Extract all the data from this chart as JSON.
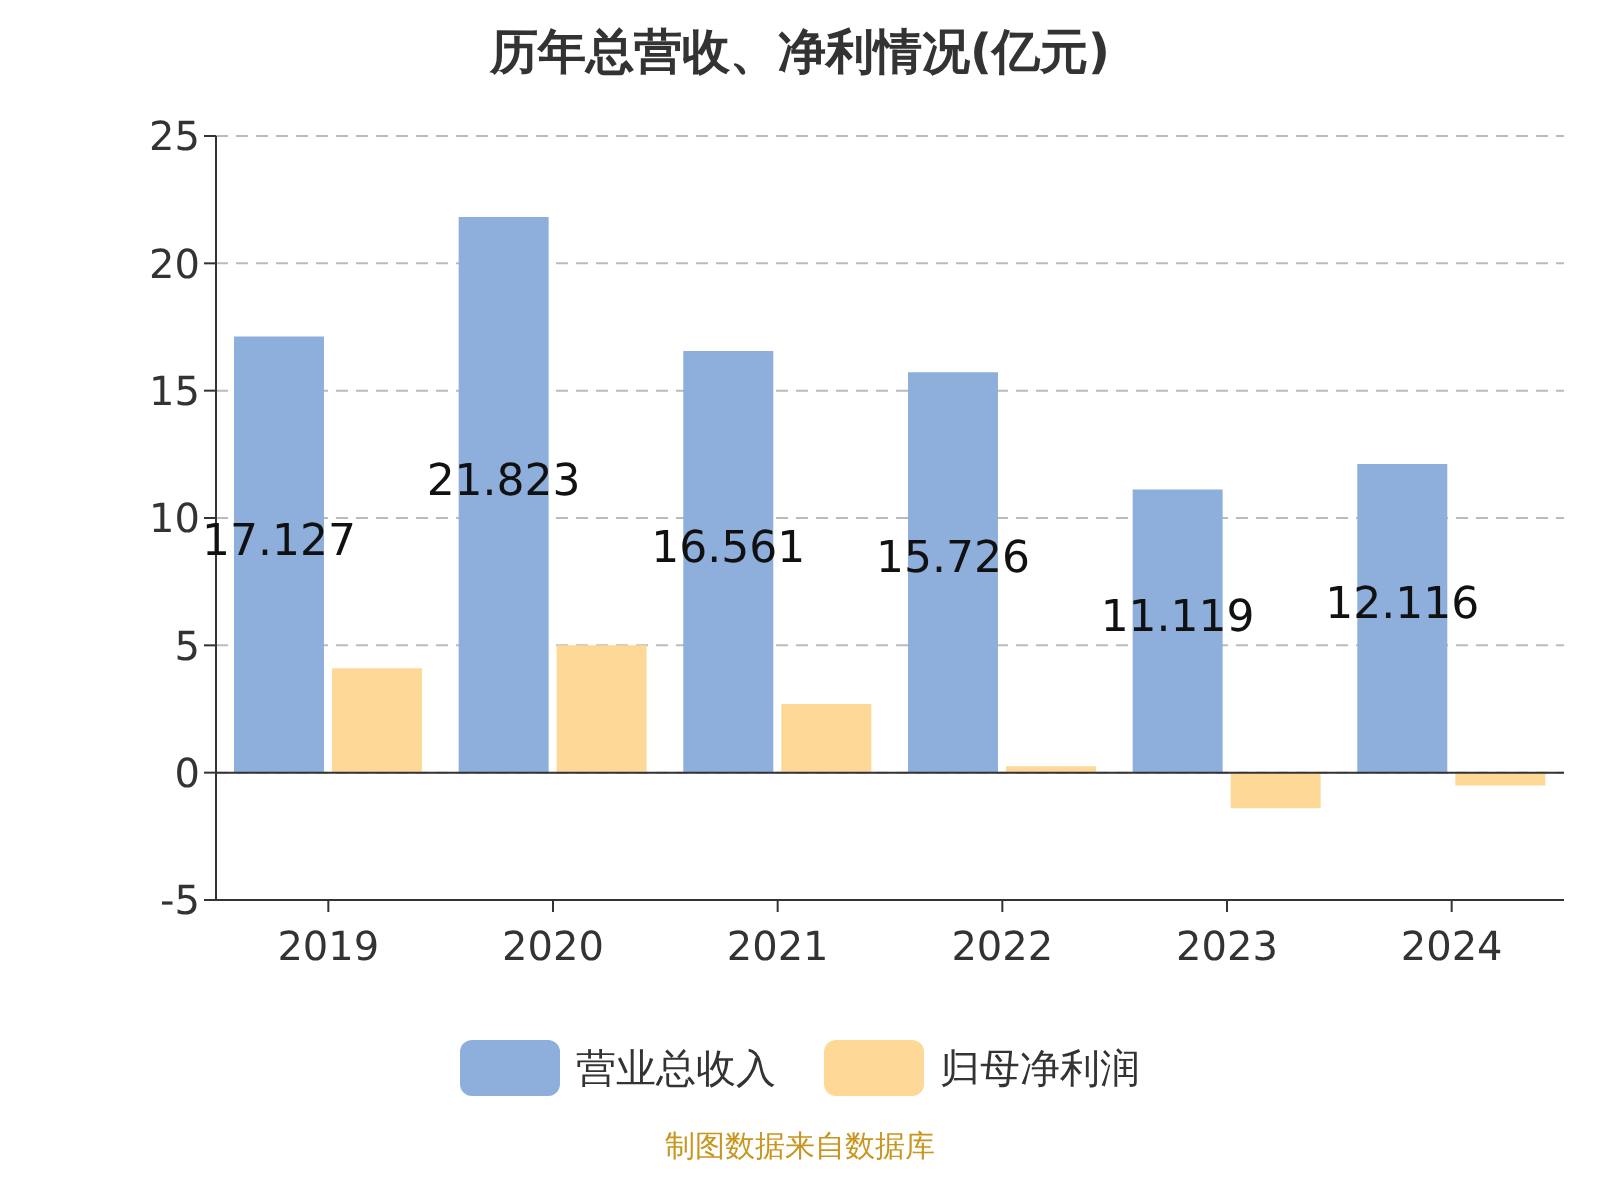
{
  "chart_data": {
    "type": "bar",
    "title": "历年总营收、净利情况(亿元)",
    "categories": [
      "2019",
      "2020",
      "2021",
      "2022",
      "2023",
      "2024"
    ],
    "series": [
      {
        "name": "营业总收入",
        "color": "#8eaedb",
        "values": [
          17.127,
          21.823,
          16.561,
          15.726,
          11.119,
          12.116
        ],
        "value_labels": [
          "17.127",
          "21.823",
          "16.561",
          "15.726",
          "11.119",
          "12.116"
        ]
      },
      {
        "name": "归母净利润",
        "color": "#fed897",
        "values": [
          4.1,
          5.0,
          2.7,
          0.25,
          -1.4,
          -0.5
        ]
      }
    ],
    "ylim": [
      -5,
      25
    ],
    "yticks": [
      -5,
      0,
      5,
      10,
      15,
      20,
      25
    ],
    "grid": "y",
    "legend": "bottom",
    "annotations": [
      "制图数据来自数据库"
    ]
  }
}
